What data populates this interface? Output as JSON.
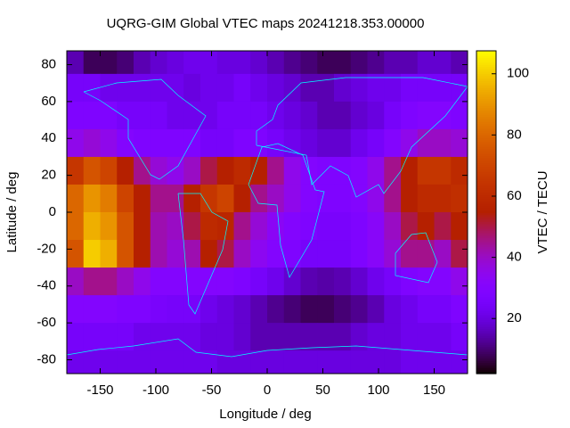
{
  "chart_data": {
    "type": "heatmap",
    "title": "UQRG-GIM Global VTEC maps 20241218.353.00000",
    "xlabel": "Longitude / deg",
    "ylabel": "Latitude / deg",
    "cblabel": "VTEC / TECU",
    "colormap": "gnuplot",
    "x": [
      -172.5,
      -157.5,
      -142.5,
      -127.5,
      -112.5,
      -97.5,
      -82.5,
      -67.5,
      -52.5,
      -37.5,
      -22.5,
      -7.5,
      7.5,
      22.5,
      37.5,
      52.5,
      67.5,
      82.5,
      97.5,
      112.5,
      127.5,
      142.5,
      157.5,
      172.5
    ],
    "y": [
      82.5,
      67.5,
      52.5,
      37.5,
      22.5,
      7.5,
      -7.5,
      -22.5,
      -37.5,
      -52.5,
      -67.5,
      -82.5
    ],
    "z": [
      [
        15,
        8,
        8,
        10,
        15,
        18,
        20,
        22,
        22,
        20,
        20,
        18,
        15,
        12,
        10,
        8,
        8,
        10,
        12,
        15,
        15,
        18,
        18,
        15
      ],
      [
        25,
        25,
        22,
        22,
        22,
        22,
        22,
        20,
        22,
        22,
        25,
        22,
        20,
        18,
        15,
        15,
        18,
        20,
        22,
        22,
        25,
        25,
        25,
        25
      ],
      [
        28,
        28,
        28,
        25,
        25,
        25,
        22,
        22,
        22,
        25,
        25,
        25,
        22,
        20,
        18,
        15,
        15,
        18,
        20,
        25,
        28,
        30,
        30,
        28
      ],
      [
        35,
        38,
        35,
        30,
        28,
        28,
        28,
        28,
        25,
        25,
        28,
        28,
        25,
        22,
        20,
        18,
        18,
        22,
        25,
        30,
        35,
        40,
        40,
        38
      ],
      [
        65,
        75,
        70,
        55,
        45,
        38,
        35,
        40,
        50,
        55,
        60,
        55,
        45,
        35,
        30,
        28,
        28,
        30,
        35,
        45,
        55,
        65,
        65,
        60
      ],
      [
        80,
        90,
        85,
        70,
        55,
        45,
        45,
        55,
        65,
        70,
        55,
        45,
        40,
        35,
        30,
        28,
        28,
        30,
        35,
        45,
        55,
        60,
        60,
        62
      ],
      [
        80,
        95,
        90,
        75,
        55,
        42,
        40,
        50,
        60,
        58,
        45,
        38,
        33,
        30,
        28,
        26,
        26,
        28,
        32,
        40,
        50,
        55,
        50,
        55
      ],
      [
        75,
        100,
        95,
        75,
        55,
        42,
        38,
        42,
        55,
        50,
        40,
        34,
        30,
        28,
        25,
        25,
        25,
        28,
        32,
        38,
        45,
        45,
        40,
        50
      ],
      [
        40,
        45,
        45,
        40,
        35,
        30,
        30,
        30,
        30,
        30,
        28,
        25,
        22,
        18,
        15,
        14,
        15,
        18,
        22,
        25,
        28,
        30,
        30,
        35
      ],
      [
        30,
        30,
        30,
        28,
        28,
        26,
        25,
        25,
        22,
        20,
        18,
        15,
        12,
        10,
        8,
        8,
        10,
        12,
        15,
        20,
        22,
        25,
        25,
        28
      ],
      [
        25,
        25,
        25,
        25,
        22,
        22,
        22,
        22,
        20,
        20,
        18,
        15,
        15,
        15,
        15,
        15,
        15,
        18,
        20,
        20,
        22,
        22,
        22,
        25
      ],
      [
        22,
        22,
        22,
        22,
        22,
        22,
        22,
        22,
        22,
        20,
        20,
        20,
        20,
        20,
        20,
        20,
        20,
        20,
        20,
        20,
        22,
        22,
        22,
        22
      ]
    ],
    "xlim": [
      -180,
      180
    ],
    "ylim": [
      -87.5,
      87.5
    ],
    "cblim": [
      2,
      107.5
    ],
    "xticks": [
      -150,
      -100,
      -50,
      0,
      50,
      100,
      150
    ],
    "yticks": [
      -80,
      -60,
      -40,
      -20,
      0,
      20,
      40,
      60,
      80
    ],
    "cbticks": [
      20,
      40,
      60,
      80,
      100
    ]
  }
}
